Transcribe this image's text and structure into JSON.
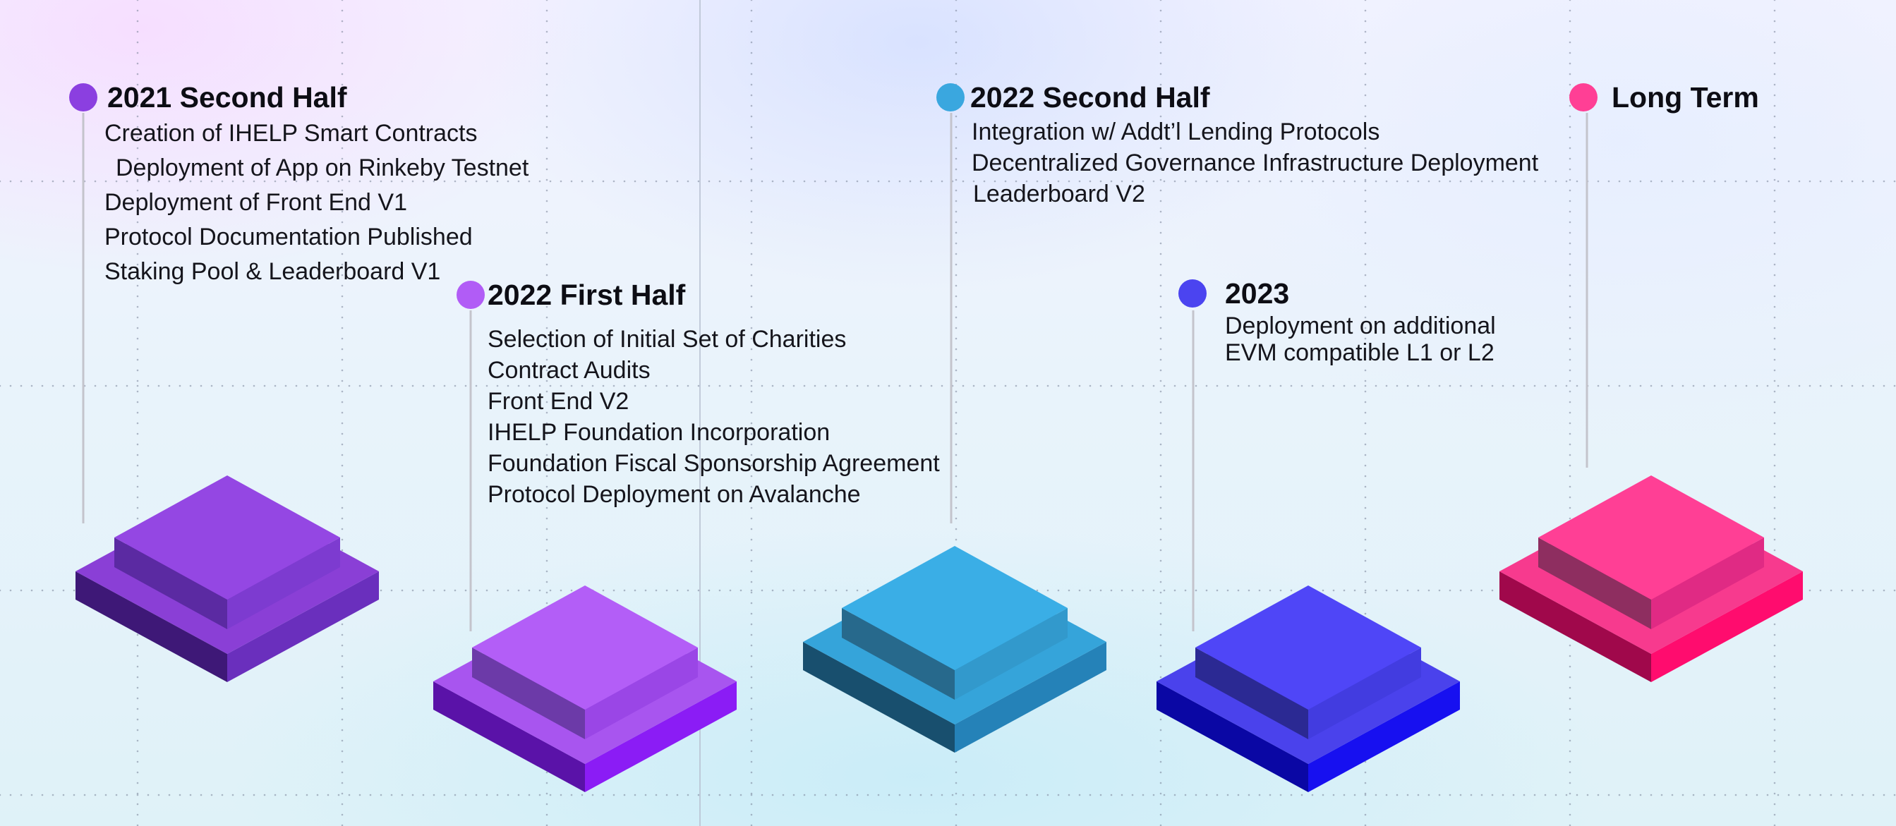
{
  "milestones": [
    {
      "title": "2021 Second Half",
      "color": "#8b3fe0",
      "items": [
        "Creation of IHELP Smart Contracts",
        "Deployment of App on Rinkeby Testnet",
        "Deployment of Front End V1",
        "Protocol Documentation Published",
        "Staking Pool & Leaderboard V1"
      ]
    },
    {
      "title": "2022 First Half",
      "color": "#b15cf6",
      "items": [
        "Selection of Initial Set of Charities",
        "Contract Audits",
        "Front End V2",
        "IHELP Foundation Incorporation",
        "Foundation Fiscal Sponsorship Agreement",
        "Protocol Deployment on Avalanche"
      ]
    },
    {
      "title": "2022 Second Half",
      "color": "#3aa7df",
      "items": [
        "Integration w/ Addt’l Lending Protocols",
        "Decentralized Governance Infrastructure Deployment",
        "Leaderboard V2"
      ]
    },
    {
      "title": "2023",
      "color": "#4b44f0",
      "items": [
        "Deployment on additional",
        "EVM compatible L1 or L2"
      ]
    },
    {
      "title": "Long Term",
      "color": "#ff3f95",
      "items": []
    }
  ],
  "blocks": [
    {
      "name": "purple",
      "top": "#9447e3",
      "topInset": "#8a3fd6",
      "sideLeft": "#4a1e8c",
      "sideRight": "#7233c4",
      "baseLeft": "#3e1877",
      "baseRight": "#6a2fbd",
      "insetLeft": "#5b2aa2",
      "insetRight": "#7d3bd0"
    },
    {
      "name": "violet",
      "top": "#b35ef7",
      "topInset": "#a855ef",
      "sideLeft": "#5f1dad",
      "sideRight": "#8d2cf0",
      "baseLeft": "#5a12a8",
      "baseRight": "#8b1cf5",
      "insetLeft": "#6c3aa8",
      "insetRight": "#9a46e6"
    },
    {
      "name": "cyan",
      "top": "#3aaee6",
      "topInset": "#35a4da",
      "sideLeft": "#1c5f82",
      "sideRight": "#2a86b9",
      "baseLeft": "#184f6e",
      "baseRight": "#2582b8",
      "insetLeft": "#27698c",
      "insetRight": "#3299cc"
    },
    {
      "name": "blue",
      "top": "#4f46f7",
      "topInset": "#4a42ec",
      "sideLeft": "#1f1aa8",
      "sideRight": "#2f2bdd",
      "baseLeft": "#0a07a4",
      "baseRight": "#1710f0",
      "insetLeft": "#2b2993",
      "insetRight": "#423ce0"
    },
    {
      "name": "pink",
      "top": "#ff3f95",
      "topInset": "#f73a8e",
      "sideLeft": "#99104f",
      "sideRight": "#e3186f",
      "baseLeft": "#a0084b",
      "baseRight": "#ff0c6e",
      "insetLeft": "#8e2e60",
      "insetRight": "#e02a84"
    }
  ]
}
